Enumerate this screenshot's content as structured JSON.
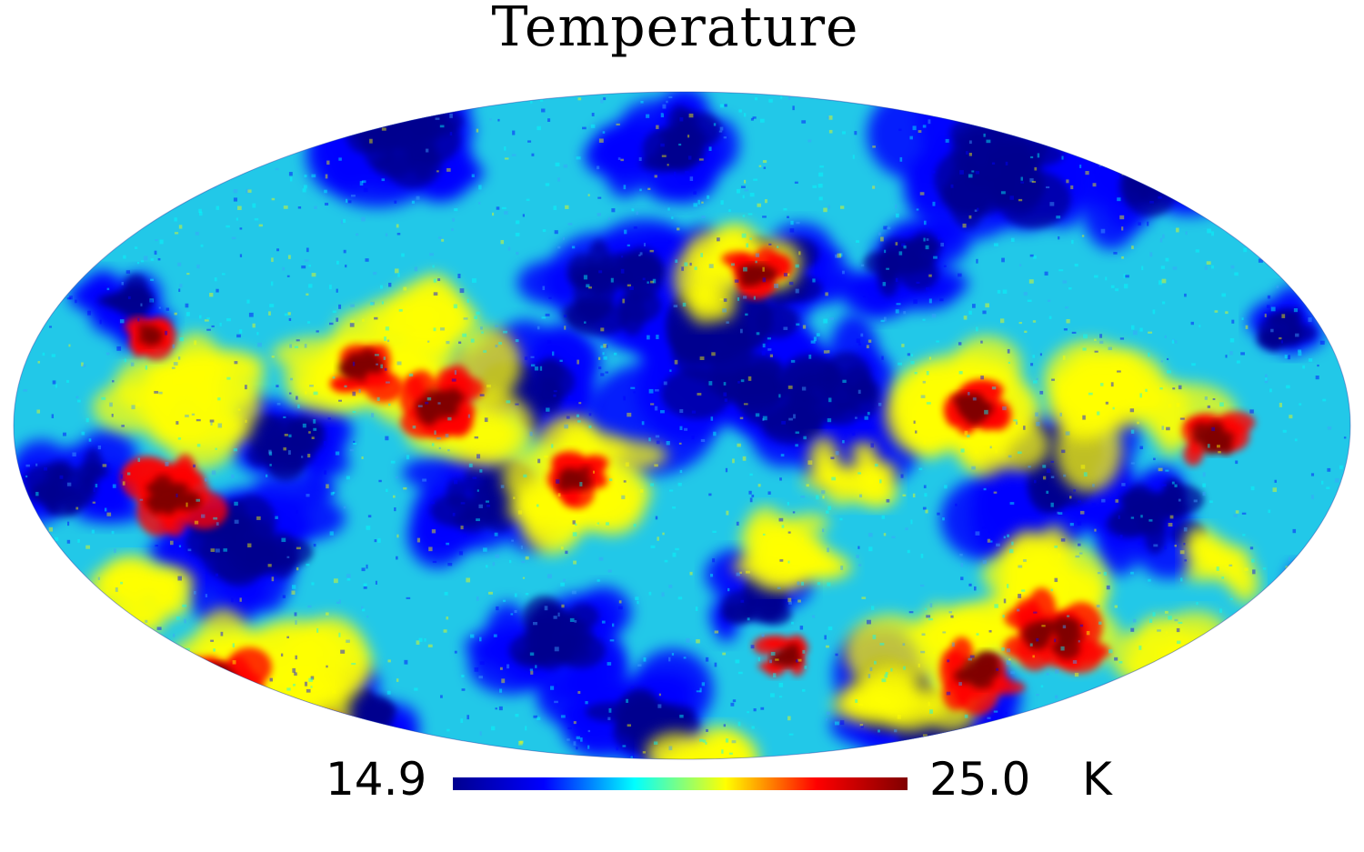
{
  "title": "Temperature",
  "projection": "mollweide",
  "colormap": {
    "name": "jet",
    "stops": [
      "#00008f",
      "#0000ff",
      "#00ffff",
      "#ffff00",
      "#ff0000",
      "#800000"
    ]
  },
  "colorbar": {
    "min": "14.9",
    "max": "25.0",
    "unit": "K"
  }
}
